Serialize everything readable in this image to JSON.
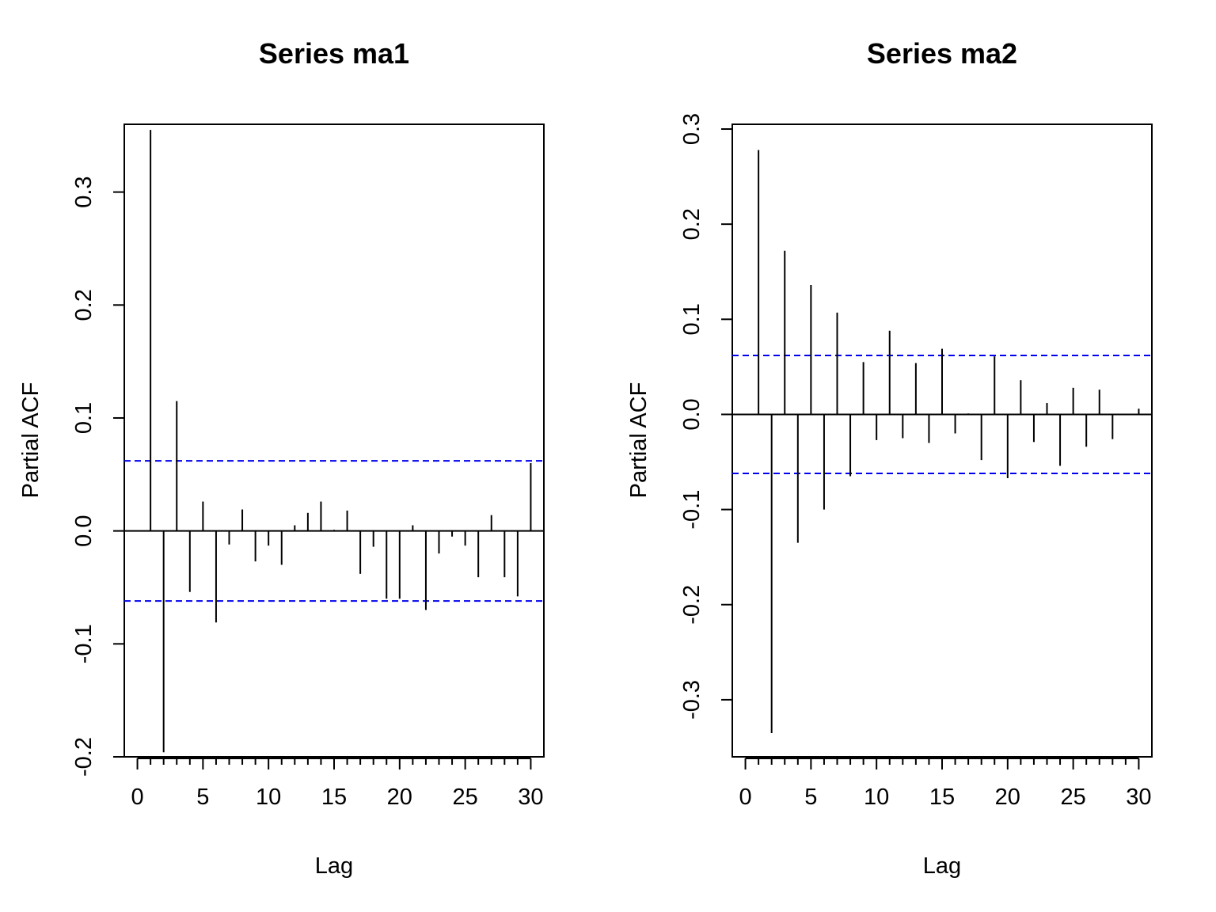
{
  "chart_data": [
    {
      "type": "bar",
      "title": "Series  ma1",
      "xlabel": "Lag",
      "ylabel": "Partial ACF",
      "xlim": [
        -1,
        31
      ],
      "ylim": [
        -0.2,
        0.36
      ],
      "xticks": [
        0,
        5,
        10,
        15,
        20,
        25,
        30
      ],
      "xtick_labels": [
        "0",
        "5",
        "10",
        "15",
        "20",
        "25",
        "30"
      ],
      "yticks": [
        -0.2,
        -0.1,
        0.0,
        0.1,
        0.2,
        0.3
      ],
      "ytick_labels": [
        "-0.2",
        "-0.1",
        "0.0",
        "0.1",
        "0.2",
        "0.3"
      ],
      "ci": 0.062,
      "ci_color": "#0000ee",
      "bar_color": "#000000",
      "x": [
        1,
        2,
        3,
        4,
        5,
        6,
        7,
        8,
        9,
        10,
        11,
        12,
        13,
        14,
        15,
        16,
        17,
        18,
        19,
        20,
        21,
        22,
        23,
        24,
        25,
        26,
        27,
        28,
        29,
        30
      ],
      "values": [
        0.355,
        -0.196,
        0.115,
        -0.054,
        0.026,
        -0.081,
        -0.012,
        0.019,
        -0.027,
        -0.013,
        -0.03,
        0.005,
        0.016,
        0.026,
        0.001,
        0.018,
        -0.038,
        -0.014,
        -0.06,
        -0.06,
        0.005,
        -0.07,
        -0.02,
        -0.005,
        -0.013,
        -0.041,
        0.014,
        -0.041,
        -0.058,
        0.06
      ]
    },
    {
      "type": "bar",
      "title": "Series  ma2",
      "xlabel": "Lag",
      "ylabel": "Partial ACF",
      "xlim": [
        -1,
        31
      ],
      "ylim": [
        -0.36,
        0.305
      ],
      "xticks": [
        0,
        5,
        10,
        15,
        20,
        25,
        30
      ],
      "xtick_labels": [
        "0",
        "5",
        "10",
        "15",
        "20",
        "25",
        "30"
      ],
      "yticks": [
        -0.3,
        -0.2,
        -0.1,
        0.0,
        0.1,
        0.2,
        0.3
      ],
      "ytick_labels": [
        "-0.3",
        "-0.2",
        "-0.1",
        "0.0",
        "0.1",
        "0.2",
        "0.3"
      ],
      "ci": 0.062,
      "ci_color": "#0000ee",
      "bar_color": "#000000",
      "x": [
        1,
        2,
        3,
        4,
        5,
        6,
        7,
        8,
        9,
        10,
        11,
        12,
        13,
        14,
        15,
        16,
        17,
        18,
        19,
        20,
        21,
        22,
        23,
        24,
        25,
        26,
        27,
        28,
        29,
        30
      ],
      "values": [
        0.278,
        -0.335,
        0.172,
        -0.135,
        0.136,
        -0.1,
        0.107,
        -0.065,
        0.055,
        -0.027,
        0.088,
        -0.025,
        0.054,
        -0.03,
        0.069,
        -0.02,
        0.001,
        -0.048,
        0.061,
        -0.067,
        0.036,
        -0.029,
        0.012,
        -0.054,
        0.028,
        -0.034,
        0.026,
        -0.026,
        0.0,
        0.006
      ]
    }
  ]
}
